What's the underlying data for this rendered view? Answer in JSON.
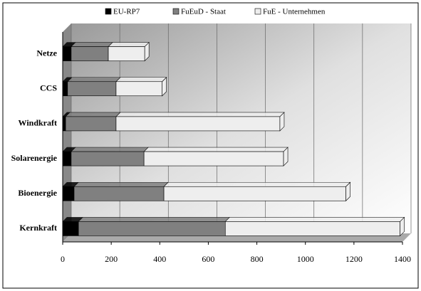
{
  "chart_data": {
    "type": "bar",
    "orientation": "horizontal",
    "stacked": true,
    "categories": [
      "Netze",
      "CCS",
      "Windkraft",
      "Solarenergie",
      "Bioenergie",
      "Kernkraft"
    ],
    "series": [
      {
        "name": "EU-RP7",
        "color": "#000000",
        "values": [
          35,
          20,
          12,
          35,
          47,
          65
        ]
      },
      {
        "name": "FuEuD - Staat",
        "color": "#808080",
        "values": [
          153,
          200,
          208,
          300,
          370,
          605
        ]
      },
      {
        "name": "FuE - Unternehmen",
        "color": "#eeeeee",
        "values": [
          150,
          190,
          675,
          575,
          750,
          720
        ]
      }
    ],
    "xlim": [
      0,
      1400
    ],
    "xticks": [
      0,
      200,
      400,
      600,
      800,
      1000,
      1200,
      1400
    ],
    "grid": true,
    "legend": "top"
  }
}
